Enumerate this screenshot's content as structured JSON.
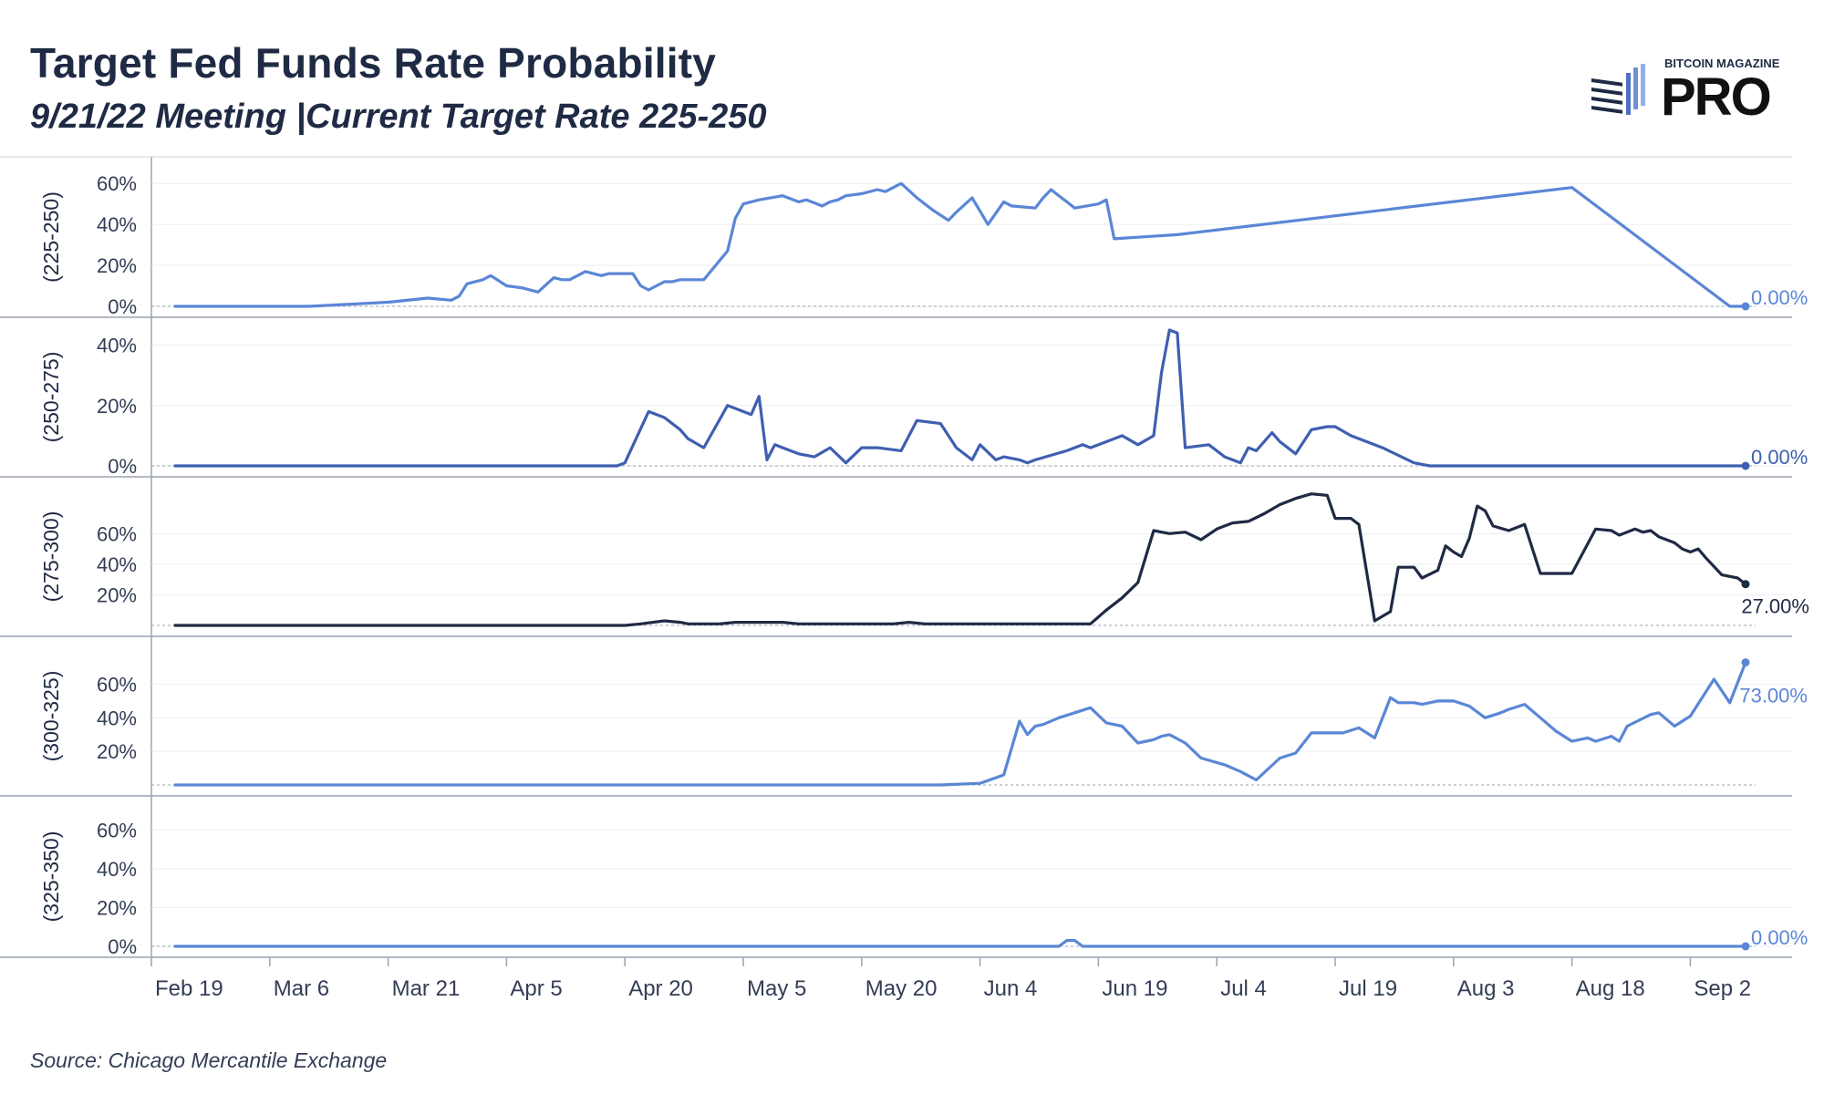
{
  "header": {
    "title": "Target Fed Funds Rate Probability",
    "subtitle": "9/21/22 Meeting |Current Target Rate 225-250"
  },
  "logo": {
    "top_text": "BITCOIN MAGAZINE",
    "main_text": "PRO",
    "icon": "candlestick-icon"
  },
  "footer": {
    "source": "Source: Chicago Mercantile Exchange"
  },
  "chart_data": {
    "type": "line",
    "x_tick_labels": [
      "Feb 19",
      "Mar 6",
      "Mar 21",
      "Apr 5",
      "Apr 20",
      "May 5",
      "May 20",
      "Jun 4",
      "Jun 19",
      "Jul 4",
      "Jul 19",
      "Aug 3",
      "Aug 18",
      "Sep 2"
    ],
    "x_start": "Feb 19",
    "x_end": "Sep 2",
    "panels": [
      {
        "ylabel": "(225-250)",
        "color": "#5b86d6",
        "ylim": [
          0,
          65
        ],
        "yticks": [
          0,
          20,
          40,
          60
        ],
        "ytick_labels": [
          "0%",
          "20%",
          "40%",
          "60%"
        ],
        "end_label": "0.00%",
        "x": [
          3,
          20,
          30,
          35,
          38,
          39,
          40,
          42,
          43,
          45,
          47,
          49,
          51,
          52,
          53,
          55,
          56,
          57,
          58,
          61,
          62,
          63,
          65,
          66,
          67,
          70,
          73,
          74,
          75,
          77,
          80,
          82,
          83,
          85,
          86,
          87,
          88,
          90,
          92,
          93,
          95,
          97,
          99,
          101,
          102,
          104,
          106,
          108,
          109,
          112,
          113,
          114,
          115,
          116,
          117,
          120,
          121,
          122,
          130,
          180,
          200,
          202
        ],
        "y": [
          0,
          0,
          2,
          4,
          3,
          5,
          11,
          13,
          15,
          10,
          9,
          7,
          14,
          13,
          13,
          17,
          16,
          15,
          16,
          16,
          10,
          8,
          12,
          12,
          13,
          13,
          27,
          43,
          50,
          52,
          54,
          51,
          52,
          49,
          51,
          52,
          54,
          55,
          57,
          56,
          60,
          53,
          47,
          42,
          46,
          53,
          40,
          51,
          49,
          48,
          53,
          57,
          54,
          51,
          48,
          50,
          52,
          33,
          35,
          58,
          0,
          0
        ]
      },
      {
        "ylabel": "(250-275)",
        "color": "#3f5fb0",
        "ylim": [
          0,
          45
        ],
        "yticks": [
          0,
          20,
          40
        ],
        "ytick_labels": [
          "0%",
          "20%",
          "40%"
        ],
        "end_label": "0.00%",
        "x": [
          3,
          50,
          59,
          60,
          63,
          65,
          67,
          68,
          70,
          73,
          76,
          77,
          78,
          79,
          80,
          82,
          84,
          86,
          88,
          90,
          92,
          95,
          97,
          100,
          101,
          102,
          104,
          105,
          107,
          108,
          110,
          111,
          112,
          116,
          118,
          119,
          121,
          123,
          125,
          127,
          128,
          129,
          130,
          131,
          134,
          136,
          137,
          138,
          139,
          140,
          141,
          142,
          143,
          145,
          147,
          149,
          150,
          152,
          156,
          160,
          162,
          202
        ],
        "y": [
          0,
          0,
          0,
          1,
          18,
          16,
          12,
          9,
          6,
          20,
          17,
          23,
          2,
          7,
          6,
          4,
          3,
          6,
          1,
          6,
          6,
          5,
          15,
          14,
          10,
          6,
          2,
          7,
          2,
          3,
          2,
          1,
          2,
          5,
          7,
          6,
          8,
          10,
          7,
          10,
          31,
          45,
          44,
          6,
          7,
          3,
          2,
          1,
          6,
          5,
          8,
          11,
          8,
          4,
          12,
          13,
          13,
          10,
          6,
          1,
          0,
          0
        ]
      },
      {
        "ylabel": "(275-300)",
        "color": "#1f2a44",
        "ylim": [
          0,
          90
        ],
        "yticks": [
          20,
          40,
          60
        ],
        "ytick_labels": [
          "20%",
          "40%",
          "60%"
        ],
        "end_label": "27.00%",
        "x": [
          3,
          60,
          62,
          65,
          67,
          68,
          70,
          72,
          74,
          76,
          78,
          80,
          82,
          84,
          86,
          88,
          90,
          92,
          94,
          96,
          98,
          100,
          105,
          110,
          112,
          115,
          119,
          121,
          123,
          125,
          127,
          129,
          131,
          133,
          135,
          137,
          139,
          141,
          143,
          145,
          147,
          149,
          150,
          151,
          152,
          153,
          155,
          157,
          158,
          160,
          161,
          163,
          164,
          165,
          166,
          167,
          168,
          169,
          170,
          172,
          174,
          176,
          178,
          179,
          180,
          183,
          185,
          186,
          188,
          189,
          190,
          191,
          193,
          194,
          195,
          196,
          197,
          199,
          201,
          202
        ],
        "y": [
          0,
          0,
          1,
          3,
          2,
          1,
          1,
          1,
          2,
          2,
          2,
          2,
          1,
          1,
          1,
          1,
          1,
          1,
          1,
          2,
          1,
          1,
          1,
          1,
          1,
          1,
          1,
          10,
          18,
          28,
          62,
          60,
          61,
          56,
          63,
          67,
          68,
          73,
          79,
          83,
          86,
          85,
          70,
          70,
          70,
          66,
          3,
          9,
          38,
          38,
          31,
          36,
          52,
          48,
          45,
          57,
          78,
          75,
          65,
          62,
          66,
          34,
          34,
          34,
          34,
          63,
          62,
          59,
          63,
          61,
          62,
          58,
          54,
          50,
          48,
          50,
          44,
          33,
          31,
          27
        ]
      },
      {
        "ylabel": "(300-325)",
        "color": "#5b86d6",
        "ylim": [
          0,
          82
        ],
        "yticks": [
          20,
          40,
          60
        ],
        "ytick_labels": [
          "20%",
          "40%",
          "60%"
        ],
        "end_label": "73.00%",
        "x": [
          3,
          100,
          105,
          108,
          110,
          111,
          112,
          113,
          115,
          117,
          119,
          121,
          123,
          125,
          127,
          128,
          129,
          131,
          133,
          136,
          138,
          140,
          143,
          145,
          147,
          149,
          151,
          153,
          155,
          157,
          158,
          160,
          161,
          163,
          165,
          167,
          169,
          171,
          172,
          174,
          176,
          178,
          180,
          182,
          183,
          185,
          186,
          187,
          190,
          191,
          193,
          195,
          198,
          200,
          202
        ],
        "y": [
          0,
          0,
          1,
          6,
          38,
          30,
          35,
          36,
          40,
          43,
          46,
          37,
          35,
          25,
          27,
          29,
          30,
          25,
          16,
          12,
          8,
          3,
          16,
          19,
          31,
          31,
          31,
          34,
          28,
          52,
          49,
          49,
          48,
          50,
          50,
          47,
          40,
          43,
          45,
          48,
          40,
          32,
          26,
          28,
          26,
          29,
          26,
          35,
          42,
          43,
          35,
          41,
          63,
          49,
          73
        ]
      },
      {
        "ylabel": "(325-350)",
        "color": "#5b86d6",
        "ylim": [
          0,
          72
        ],
        "yticks": [
          0,
          20,
          40,
          60
        ],
        "ytick_labels": [
          "0%",
          "20%",
          "40%",
          "60%"
        ],
        "end_label": "0.00%",
        "x": [
          3,
          112,
          113,
          114,
          115,
          116,
          117,
          118,
          120,
          122,
          124,
          127,
          128,
          129,
          130,
          132,
          134,
          136,
          138,
          140,
          142,
          144,
          146,
          148,
          150,
          152,
          154,
          156,
          158,
          160,
          162,
          164,
          166,
          168,
          170,
          172,
          174,
          176,
          178,
          180,
          182,
          184,
          186,
          188,
          190,
          192,
          194,
          196,
          198,
          200,
          202
        ],
        "y": [
          0,
          0,
          0,
          0,
          0,
          3,
          3,
          0,
          0,
          0,
          0,
          0,
          0,
          0,
          0,
          0,
          0,
          0,
          0,
          0,
          0,
          0,
          0,
          0,
          0,
          0,
          0,
          0,
          0,
          0,
          0,
          0,
          0,
          0,
          0,
          0,
          0,
          0,
          0,
          0,
          0,
          0,
          0,
          0,
          0,
          0,
          0,
          0,
          0,
          0,
          0
        ]
      }
    ]
  }
}
